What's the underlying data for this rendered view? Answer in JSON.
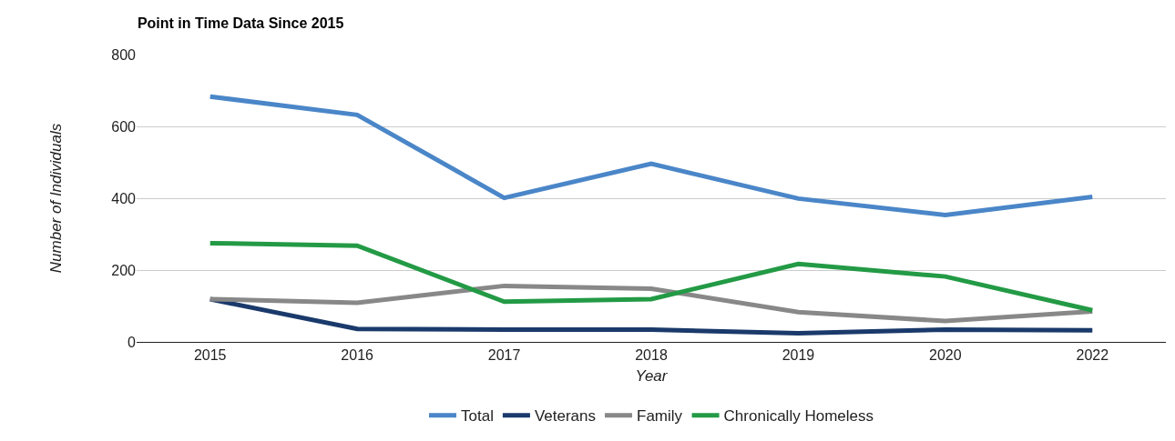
{
  "chart_data": {
    "type": "line",
    "title": "Point in Time Data Since 2015",
    "xlabel": "Year",
    "ylabel": "Number of Individuals",
    "categories": [
      "2015",
      "2016",
      "2017",
      "2018",
      "2019",
      "2020",
      "2022"
    ],
    "series": [
      {
        "name": "Total",
        "color": "#4a86c8",
        "values": [
          683,
          632,
          401,
          496,
          399,
          353,
          404
        ]
      },
      {
        "name": "Veterans",
        "color": "#1a3a6b",
        "values": [
          119,
          36,
          34,
          34,
          24,
          34,
          32
        ]
      },
      {
        "name": "Family",
        "color": "#888888",
        "values": [
          119,
          109,
          156,
          148,
          83,
          58,
          85
        ]
      },
      {
        "name": "Chronically Homeless",
        "color": "#239a45",
        "values": [
          275,
          268,
          112,
          119,
          217,
          182,
          88
        ]
      }
    ],
    "ylim": [
      0,
      800
    ],
    "yticks": [
      0,
      200,
      400,
      600,
      800
    ],
    "grid": "y",
    "legend": "bottom",
    "marker": "none",
    "line_style": "solid"
  }
}
